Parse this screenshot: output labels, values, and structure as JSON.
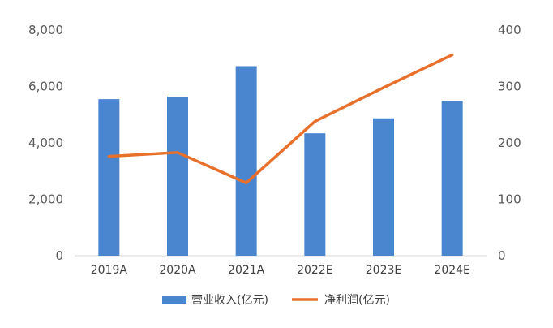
{
  "chart_data": {
    "type": "bar",
    "categories": [
      "2019A",
      "2020A",
      "2021A",
      "2022E",
      "2023E",
      "2024E"
    ],
    "series": [
      {
        "name": "营业收入(亿元)",
        "type": "bar",
        "axis": "left",
        "color": "#4a86cf",
        "values": [
          5550,
          5640,
          6720,
          4340,
          4870,
          5490
        ]
      },
      {
        "name": "净利润(亿元)",
        "type": "line",
        "axis": "right",
        "color": "#e8702a",
        "values": [
          176,
          183,
          129,
          238,
          298,
          356
        ]
      }
    ],
    "ylim_left": [
      0,
      8000
    ],
    "yticks_left": [
      "0",
      "2,000",
      "4,000",
      "6,000",
      "8,000"
    ],
    "ylim_right": [
      0,
      400
    ],
    "yticks_right": [
      "0",
      "100",
      "200",
      "300",
      "400"
    ],
    "grid": false,
    "legend": "bottom"
  }
}
